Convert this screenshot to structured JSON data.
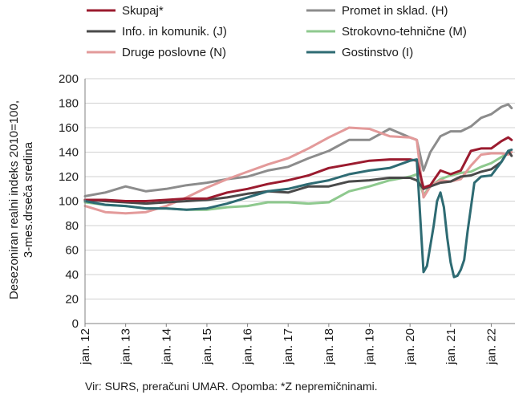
{
  "note": "Vir: SURS, preračuni UMAR. Opomba: *Z nepremičninami.",
  "chart_data": {
    "type": "line",
    "ylabel_lines": [
      "Desezoniran realni indeks 2010=100,",
      "3-mes.drseča sredina"
    ],
    "xlabel": "",
    "ylim": [
      0,
      200
    ],
    "yticks": [
      0,
      20,
      40,
      60,
      80,
      100,
      120,
      140,
      160,
      180,
      200
    ],
    "xlim": [
      "2012-01",
      "2022-08"
    ],
    "x_tick_labels": [
      "jan. 12",
      "jan. 13",
      "jan. 14",
      "jan. 15",
      "jan. 16",
      "jan. 17",
      "jan. 18",
      "jan. 19",
      "jan. 20",
      "jan. 21",
      "jan. 22"
    ],
    "grid": "horizontal",
    "legend_position": "top",
    "series": [
      {
        "name": "Skupaj*",
        "color": "#9b1b2f",
        "points": [
          [
            "2012-01",
            101
          ],
          [
            "2012-07",
            101
          ],
          [
            "2013-01",
            100
          ],
          [
            "2013-07",
            100
          ],
          [
            "2014-01",
            101
          ],
          [
            "2014-07",
            102
          ],
          [
            "2015-01",
            102
          ],
          [
            "2015-07",
            107
          ],
          [
            "2016-01",
            110
          ],
          [
            "2016-07",
            114
          ],
          [
            "2017-01",
            117
          ],
          [
            "2017-07",
            121
          ],
          [
            "2018-01",
            127
          ],
          [
            "2018-07",
            130
          ],
          [
            "2019-01",
            133
          ],
          [
            "2019-07",
            134
          ],
          [
            "2020-01",
            134
          ],
          [
            "2020-03",
            133
          ],
          [
            "2020-05",
            111
          ],
          [
            "2020-07",
            113
          ],
          [
            "2020-10",
            125
          ],
          [
            "2021-01",
            122
          ],
          [
            "2021-04",
            125
          ],
          [
            "2021-07",
            141
          ],
          [
            "2021-10",
            143
          ],
          [
            "2022-01",
            143
          ],
          [
            "2022-04",
            149
          ],
          [
            "2022-06",
            152
          ],
          [
            "2022-07",
            150
          ]
        ]
      },
      {
        "name": "Promet in sklad. (H)",
        "color": "#8c8c8c",
        "points": [
          [
            "2012-01",
            104
          ],
          [
            "2012-07",
            107
          ],
          [
            "2013-01",
            112
          ],
          [
            "2013-07",
            108
          ],
          [
            "2014-01",
            110
          ],
          [
            "2014-07",
            113
          ],
          [
            "2015-01",
            115
          ],
          [
            "2015-07",
            118
          ],
          [
            "2016-01",
            120
          ],
          [
            "2016-07",
            125
          ],
          [
            "2017-01",
            128
          ],
          [
            "2017-07",
            135
          ],
          [
            "2018-01",
            141
          ],
          [
            "2018-07",
            150
          ],
          [
            "2019-01",
            150
          ],
          [
            "2019-07",
            159
          ],
          [
            "2020-01",
            152
          ],
          [
            "2020-03",
            150
          ],
          [
            "2020-05",
            125
          ],
          [
            "2020-07",
            140
          ],
          [
            "2020-10",
            153
          ],
          [
            "2021-01",
            157
          ],
          [
            "2021-04",
            157
          ],
          [
            "2021-07",
            161
          ],
          [
            "2021-10",
            168
          ],
          [
            "2022-01",
            171
          ],
          [
            "2022-04",
            177
          ],
          [
            "2022-06",
            179
          ],
          [
            "2022-07",
            176
          ]
        ]
      },
      {
        "name": "Info. in komunik. (J)",
        "color": "#4a4a4a",
        "points": [
          [
            "2012-01",
            101
          ],
          [
            "2012-07",
            100
          ],
          [
            "2013-01",
            99
          ],
          [
            "2013-07",
            98
          ],
          [
            "2014-01",
            99
          ],
          [
            "2014-07",
            100
          ],
          [
            "2015-01",
            101
          ],
          [
            "2015-07",
            103
          ],
          [
            "2016-01",
            106
          ],
          [
            "2016-07",
            108
          ],
          [
            "2017-01",
            107
          ],
          [
            "2017-07",
            112
          ],
          [
            "2018-01",
            112
          ],
          [
            "2018-07",
            116
          ],
          [
            "2019-01",
            117
          ],
          [
            "2019-07",
            119
          ],
          [
            "2020-01",
            119
          ],
          [
            "2020-03",
            117
          ],
          [
            "2020-05",
            110
          ],
          [
            "2020-07",
            112
          ],
          [
            "2020-10",
            115
          ],
          [
            "2021-01",
            116
          ],
          [
            "2021-04",
            120
          ],
          [
            "2021-07",
            121
          ],
          [
            "2021-10",
            124
          ],
          [
            "2022-01",
            126
          ],
          [
            "2022-04",
            132
          ],
          [
            "2022-06",
            141
          ],
          [
            "2022-07",
            137
          ]
        ]
      },
      {
        "name": "Strokovno-tehnične (M)",
        "color": "#8ec98e",
        "points": [
          [
            "2012-01",
            99
          ],
          [
            "2012-07",
            97
          ],
          [
            "2013-01",
            96
          ],
          [
            "2013-07",
            94
          ],
          [
            "2014-01",
            94
          ],
          [
            "2014-07",
            93
          ],
          [
            "2015-01",
            93
          ],
          [
            "2015-07",
            95
          ],
          [
            "2016-01",
            96
          ],
          [
            "2016-07",
            99
          ],
          [
            "2017-01",
            99
          ],
          [
            "2017-07",
            98
          ],
          [
            "2018-01",
            99
          ],
          [
            "2018-07",
            108
          ],
          [
            "2019-01",
            112
          ],
          [
            "2019-07",
            117
          ],
          [
            "2020-01",
            120
          ],
          [
            "2020-03",
            122
          ],
          [
            "2020-05",
            105
          ],
          [
            "2020-07",
            112
          ],
          [
            "2020-10",
            118
          ],
          [
            "2021-01",
            121
          ],
          [
            "2021-04",
            123
          ],
          [
            "2021-07",
            124
          ],
          [
            "2021-10",
            128
          ],
          [
            "2022-01",
            131
          ],
          [
            "2022-04",
            136
          ],
          [
            "2022-06",
            139
          ],
          [
            "2022-07",
            140
          ]
        ]
      },
      {
        "name": "Druge poslovne (N)",
        "color": "#e39a9a",
        "points": [
          [
            "2012-01",
            96
          ],
          [
            "2012-07",
            91
          ],
          [
            "2013-01",
            90
          ],
          [
            "2013-07",
            91
          ],
          [
            "2014-01",
            96
          ],
          [
            "2014-07",
            103
          ],
          [
            "2015-01",
            111
          ],
          [
            "2015-07",
            118
          ],
          [
            "2016-01",
            124
          ],
          [
            "2016-07",
            130
          ],
          [
            "2017-01",
            135
          ],
          [
            "2017-07",
            143
          ],
          [
            "2018-01",
            152
          ],
          [
            "2018-07",
            160
          ],
          [
            "2019-01",
            159
          ],
          [
            "2019-07",
            153
          ],
          [
            "2020-01",
            152
          ],
          [
            "2020-03",
            150
          ],
          [
            "2020-05",
            103
          ],
          [
            "2020-07",
            112
          ],
          [
            "2020-10",
            117
          ],
          [
            "2021-01",
            116
          ],
          [
            "2021-04",
            118
          ],
          [
            "2021-07",
            129
          ],
          [
            "2021-10",
            138
          ],
          [
            "2022-01",
            139
          ],
          [
            "2022-04",
            139
          ],
          [
            "2022-06",
            138
          ],
          [
            "2022-07",
            140
          ]
        ]
      },
      {
        "name": "Gostinstvo (I)",
        "color": "#2e6b73",
        "points": [
          [
            "2012-01",
            100
          ],
          [
            "2012-07",
            97
          ],
          [
            "2013-01",
            96
          ],
          [
            "2013-07",
            94
          ],
          [
            "2014-01",
            94
          ],
          [
            "2014-07",
            93
          ],
          [
            "2015-01",
            94
          ],
          [
            "2015-07",
            98
          ],
          [
            "2016-01",
            103
          ],
          [
            "2016-07",
            108
          ],
          [
            "2017-01",
            110
          ],
          [
            "2017-07",
            114
          ],
          [
            "2018-01",
            117
          ],
          [
            "2018-07",
            122
          ],
          [
            "2019-01",
            125
          ],
          [
            "2019-07",
            127
          ],
          [
            "2020-01",
            133
          ],
          [
            "2020-03",
            134
          ],
          [
            "2020-05",
            42
          ],
          [
            "2020-06",
            47
          ],
          [
            "2020-08",
            80
          ],
          [
            "2020-09",
            100
          ],
          [
            "2020-10",
            107
          ],
          [
            "2020-11",
            95
          ],
          [
            "2020-12",
            70
          ],
          [
            "2021-01",
            50
          ],
          [
            "2021-02",
            38
          ],
          [
            "2021-03",
            39
          ],
          [
            "2021-04",
            44
          ],
          [
            "2021-05",
            52
          ],
          [
            "2021-06",
            75
          ],
          [
            "2021-08",
            115
          ],
          [
            "2021-10",
            120
          ],
          [
            "2022-01",
            121
          ],
          [
            "2022-04",
            132
          ],
          [
            "2022-06",
            141
          ],
          [
            "2022-07",
            142
          ]
        ]
      }
    ]
  }
}
